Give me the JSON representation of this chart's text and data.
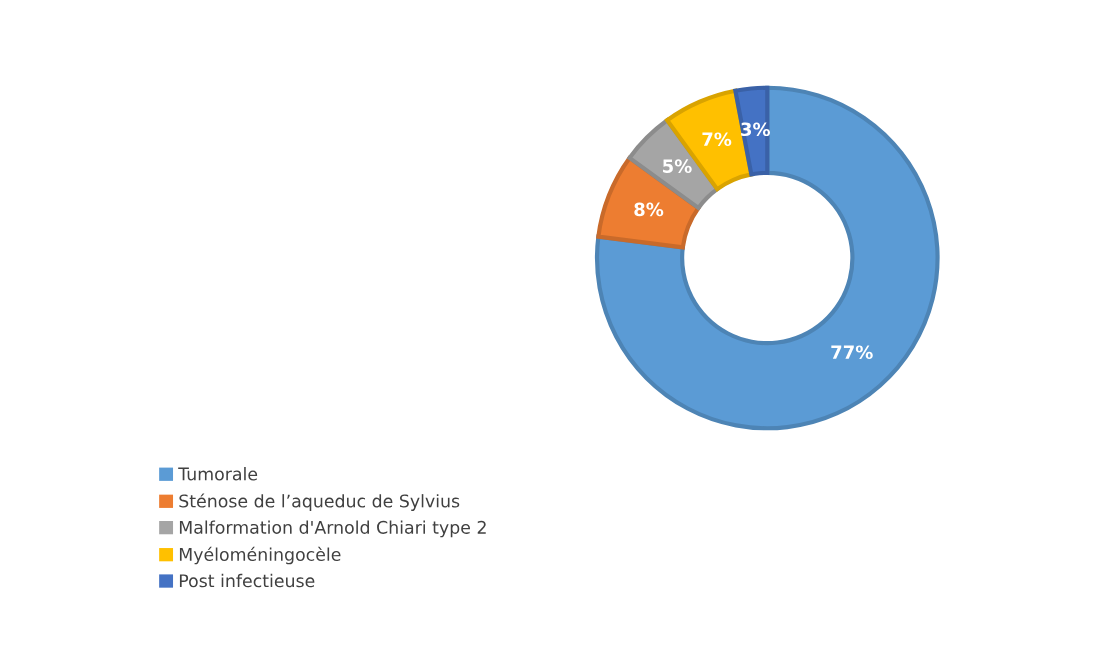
{
  "chart_data": {
    "type": "donut",
    "categories": [
      "Tumorale",
      "Sténose de l’aqueduc de Sylvius",
      "Malformation d'Arnold Chiari type 2",
      "Myéloméningocèle",
      "Post infectieuse"
    ],
    "values": [
      77,
      8,
      5,
      7,
      3
    ],
    "colors": [
      "#5b9bd5",
      "#ed7d31",
      "#a5a5a5",
      "#ffc000",
      "#4472c4"
    ],
    "value_labels": [
      "77%",
      "8%",
      "5%",
      "7%",
      "3%"
    ],
    "legend": "bottom left"
  }
}
